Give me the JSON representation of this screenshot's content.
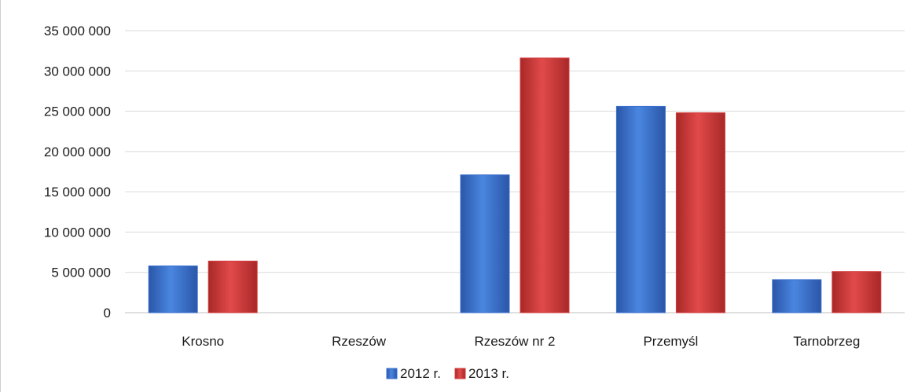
{
  "chart_data": {
    "type": "bar",
    "title": "",
    "xlabel": "",
    "ylabel": "",
    "categories": [
      "Krosno",
      "Rzeszów",
      "Rzeszów nr 2",
      "Przemyśl",
      "Tarnobrzeg"
    ],
    "series": [
      {
        "name": "2012 r.",
        "color": "#3a6fcf",
        "values": [
          5800000,
          0,
          17100000,
          25600000,
          4100000
        ]
      },
      {
        "name": "2013 r.",
        "color": "#d23b3b",
        "values": [
          6400000,
          0,
          31600000,
          24800000,
          5100000
        ]
      }
    ],
    "ylim": [
      0,
      35000000
    ],
    "ytick_step": 5000000,
    "ytick_labels": [
      "0",
      "5 000 000",
      "10 000 000",
      "15 000 000",
      "20 000 000",
      "25 000 000",
      "30 000 000",
      "35 000 000"
    ],
    "grid": true,
    "legend_position": "bottom"
  }
}
